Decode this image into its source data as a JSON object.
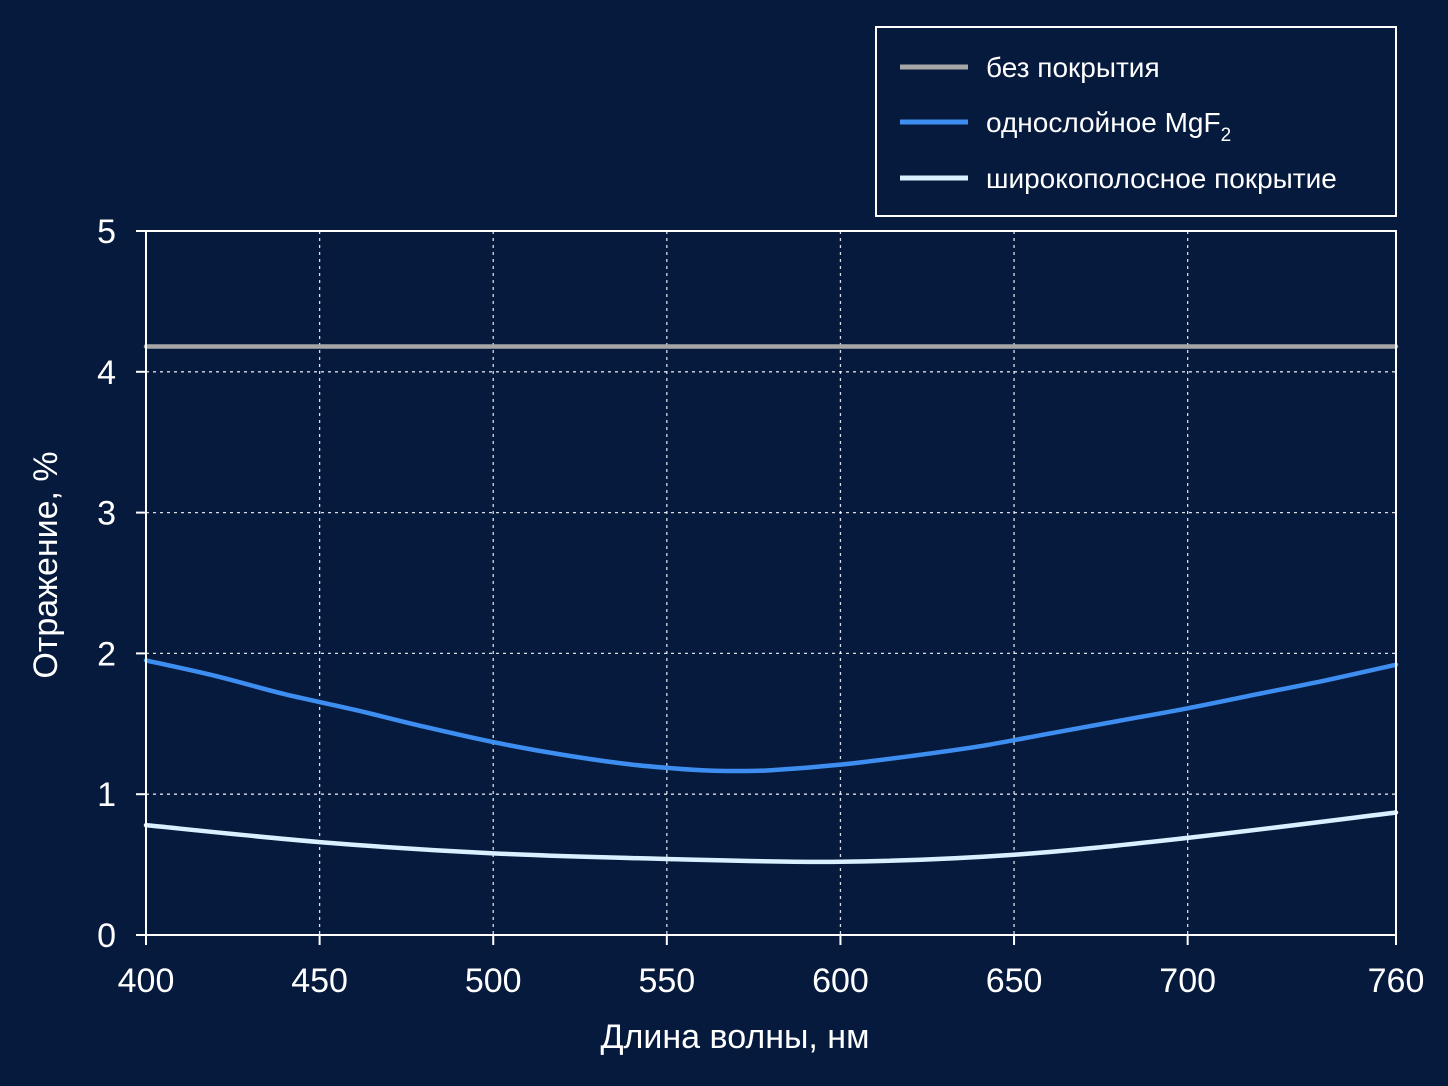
{
  "colors": {
    "background": "#061a3e",
    "axis": "#ffffff",
    "grid": "#ffffff"
  },
  "chart_data": {
    "type": "line",
    "xlabel": "Длина волны, нм",
    "ylabel": "Отражение, %",
    "xlim": [
      400,
      760
    ],
    "ylim": [
      0,
      5
    ],
    "x_ticks": [
      400,
      450,
      500,
      550,
      600,
      650,
      700,
      760
    ],
    "y_ticks": [
      0,
      1,
      2,
      3,
      4,
      5
    ],
    "grid": true,
    "legend_position": "top-right",
    "series": [
      {
        "name": "без покрытия",
        "color": "#a6a6a6",
        "x": [
          400,
          760
        ],
        "y": [
          4.18,
          4.18
        ]
      },
      {
        "name": "однослойное MgF",
        "name_subscript": "2",
        "color": "#3d8ef0",
        "x": [
          400,
          420,
          440,
          460,
          480,
          500,
          520,
          540,
          560,
          570,
          580,
          600,
          620,
          640,
          660,
          680,
          700,
          720,
          740,
          760
        ],
        "y": [
          1.95,
          1.84,
          1.71,
          1.6,
          1.48,
          1.37,
          1.28,
          1.21,
          1.17,
          1.165,
          1.17,
          1.21,
          1.27,
          1.34,
          1.43,
          1.52,
          1.61,
          1.71,
          1.81,
          1.92
        ]
      },
      {
        "name": "широкополосное покрытие",
        "color": "#d8f0ff",
        "x": [
          400,
          450,
          500,
          550,
          600,
          650,
          700,
          760
        ],
        "y": [
          0.78,
          0.66,
          0.58,
          0.54,
          0.52,
          0.57,
          0.69,
          0.87
        ]
      }
    ]
  }
}
